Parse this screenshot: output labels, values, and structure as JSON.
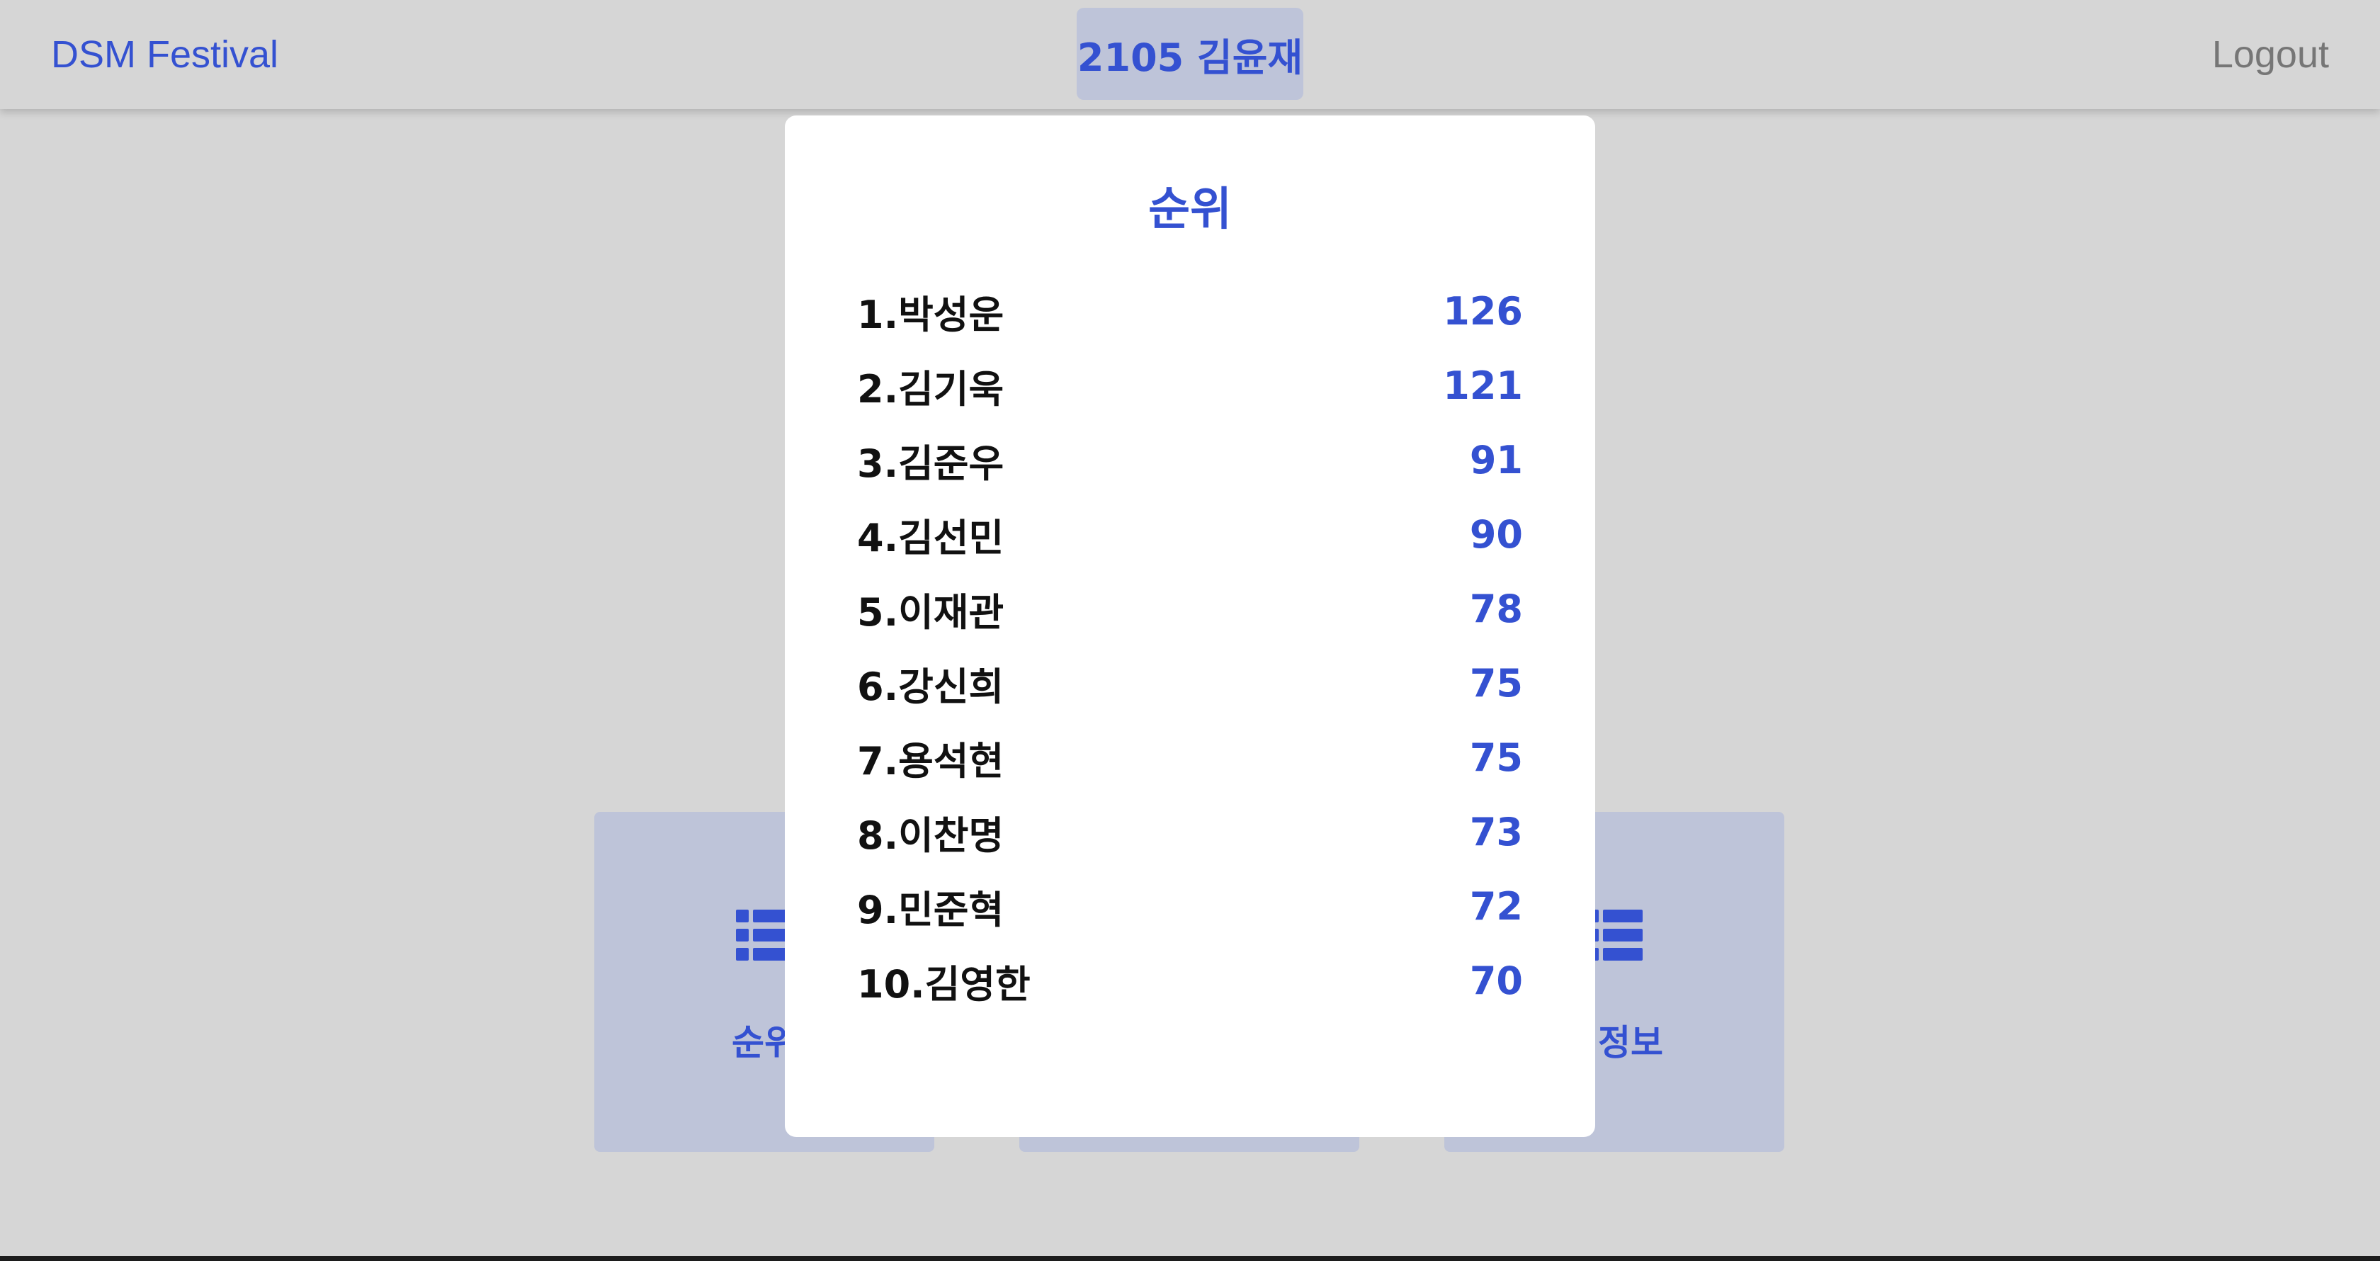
{
  "header": {
    "brand": "DSM Festival",
    "user": "2105 김윤재",
    "logout": "Logout"
  },
  "menu": {
    "cards": [
      {
        "label": "순위",
        "icon": "list-icon"
      },
      {
        "label": "",
        "icon": "list-icon"
      },
      {
        "label": "변정보",
        "icon": "list-icon"
      }
    ]
  },
  "modal": {
    "title": "순위",
    "rankings": [
      {
        "name": "1.박성운",
        "score": "126"
      },
      {
        "name": "2.김기욱",
        "score": "121"
      },
      {
        "name": "3.김준우",
        "score": "91"
      },
      {
        "name": "4.김선민",
        "score": "90"
      },
      {
        "name": "5.이재관",
        "score": "78"
      },
      {
        "name": "6.강신희",
        "score": "75"
      },
      {
        "name": "7.용석현",
        "score": "75"
      },
      {
        "name": "8.이찬명",
        "score": "73"
      },
      {
        "name": "9.민준혁",
        "score": "72"
      },
      {
        "name": "10.김영한",
        "score": "70"
      }
    ]
  },
  "colors": {
    "accent": "#3451d1",
    "background": "#d6d6d6",
    "card": "#bec4d9",
    "modal": "#ffffff",
    "muted": "#767676"
  }
}
